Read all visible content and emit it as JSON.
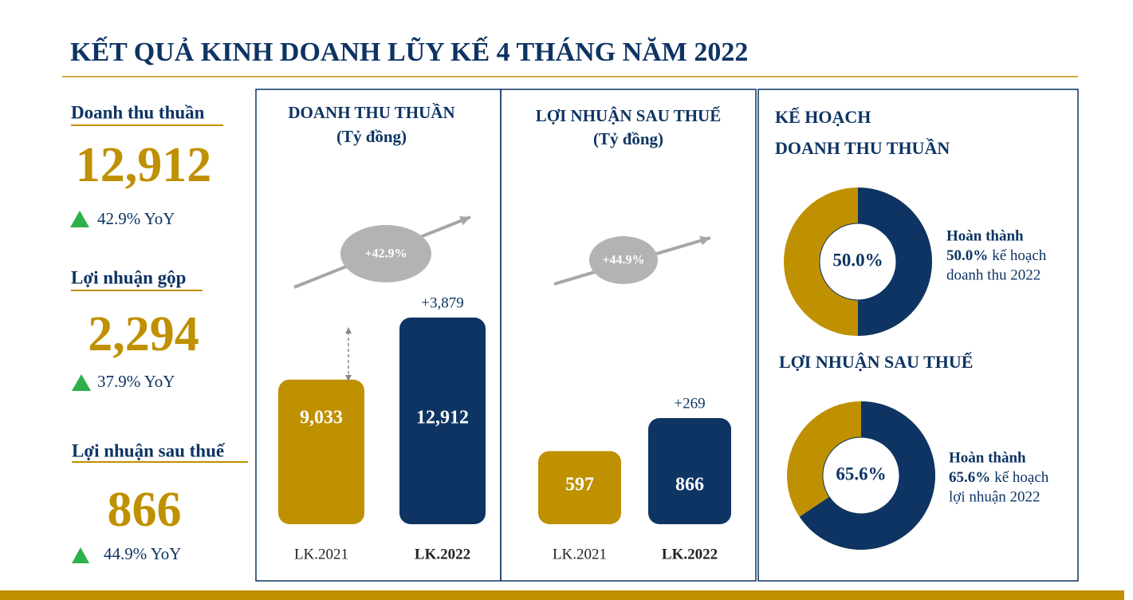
{
  "header": {
    "title": "KẾT QUẢ KINH DOANH LŨY KẾ 4 THÁNG NĂM 2022"
  },
  "kpis": [
    {
      "label": "Doanh thu thuần",
      "value": "12,912",
      "change": "42.9% YoY"
    },
    {
      "label": "Lợi nhuận gộp",
      "value": "2,294",
      "change": "37.9% YoY"
    },
    {
      "label": "Lợi nhuận sau thuế",
      "value": "866",
      "change": "44.9% YoY"
    }
  ],
  "panels": [
    {
      "title": "DOANH THU THUẦN",
      "unit": "(Tỷ đồng)",
      "growth": "+42.9%",
      "increase": "+3,879",
      "bars": [
        {
          "category": "LK.2021",
          "value": 9033,
          "label": "9,033",
          "color": "#bf9000"
        },
        {
          "category": "LK.2022",
          "value": 12912,
          "label": "12,912",
          "color": "#0d3463"
        }
      ]
    },
    {
      "title": "LỢI NHUẬN SAU THUẾ",
      "unit": "(Tỷ đồng)",
      "growth": "+44.9%",
      "increase": "+269",
      "bars": [
        {
          "category": "LK.2021",
          "value": 597,
          "label": "597",
          "color": "#bf9000"
        },
        {
          "category": "LK.2022",
          "value": 866,
          "label": "866",
          "color": "#0d3463"
        }
      ]
    }
  ],
  "plans": {
    "heading": "KẾ HOẠCH",
    "items": [
      {
        "title": "DOANH THU THUẦN",
        "percent": 50.0,
        "percent_label": "50.0%",
        "note_title": "Hoàn thành",
        "note_line2": "kế hoạch",
        "note_line3": "doanh thu 2022"
      },
      {
        "title": "LỢI NHUẬN SAU THUẾ",
        "percent": 65.6,
        "percent_label": "65.6%",
        "note_title": "Hoàn thành",
        "note_line2": "kế hoạch",
        "note_line3": "lợi nhuận 2022"
      }
    ]
  }
}
